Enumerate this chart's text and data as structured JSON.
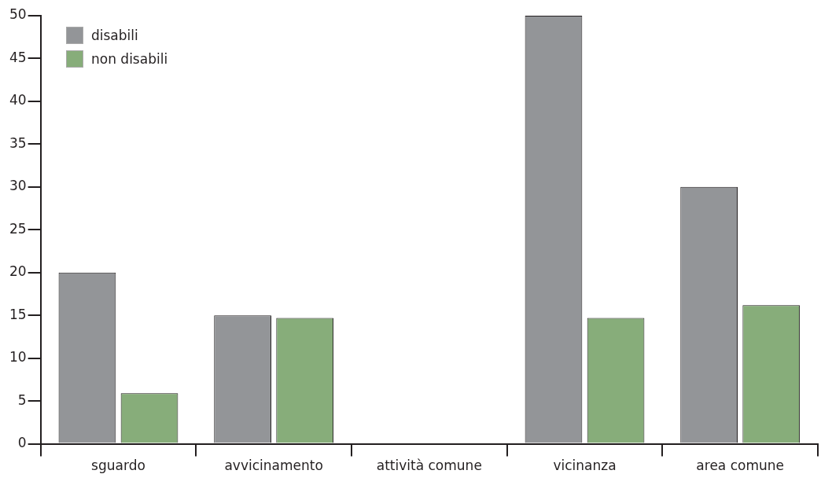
{
  "chart_data": {
    "type": "bar",
    "categories": [
      "sguardo",
      "avvicinamento",
      "attività comune",
      "vicinanza",
      "area comune"
    ],
    "series": [
      {
        "name": "disabili",
        "color": "#939598",
        "values": [
          20,
          15,
          0,
          50,
          30
        ]
      },
      {
        "name": "non disabili",
        "color": "#87ad7a",
        "values": [
          5.9,
          14.7,
          0,
          14.7,
          16.2
        ]
      }
    ],
    "ylim": [
      0,
      50
    ],
    "yticks": [
      0,
      5,
      10,
      15,
      20,
      25,
      30,
      35,
      40,
      45,
      50
    ],
    "grid": false,
    "legend": "top left"
  }
}
